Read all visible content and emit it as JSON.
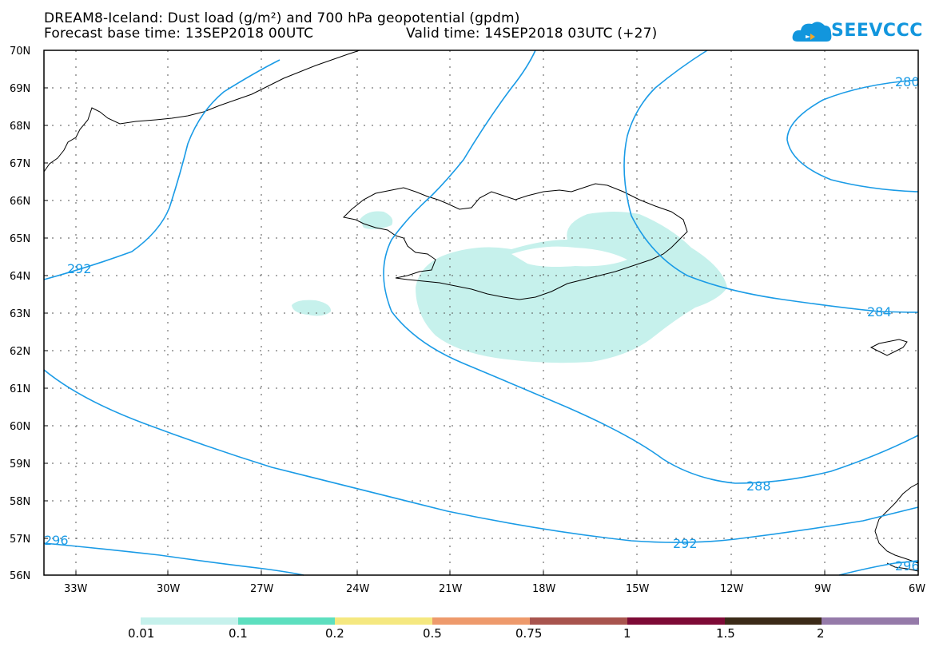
{
  "title": {
    "line1": "DREAM8-Iceland: Dust load (g/m²) and 700 hPa geopotential (gpdm)",
    "base": "Forecast base time: 13SEP2018 00UTC",
    "valid": "Valid time: 14SEP2018 03UTC (+27)"
  },
  "logo": {
    "text": "SEEVCCC",
    "icon": "cloud-icon"
  },
  "axes": {
    "lat_labels": [
      "70N",
      "69N",
      "68N",
      "67N",
      "66N",
      "65N",
      "64N",
      "63N",
      "62N",
      "61N",
      "60N",
      "59N",
      "58N",
      "57N",
      "56N"
    ],
    "lon_labels": [
      "33W",
      "30W",
      "27W",
      "24W",
      "21W",
      "18W",
      "15W",
      "12W",
      "9W",
      "6W"
    ]
  },
  "contours": {
    "labels": [
      "280",
      "284",
      "288",
      "292",
      "292",
      "296",
      "296"
    ]
  },
  "legend": {
    "labels": [
      "0.01",
      "0.1",
      "0.2",
      "0.5",
      "0.75",
      "1",
      "1.5",
      "2"
    ],
    "colors": [
      "#c6f1ec",
      "#5ddfbf",
      "#f5e880",
      "#ee9a6c",
      "#a8544e",
      "#7d0a36",
      "#3b2a17",
      "#957aa9"
    ]
  },
  "colors": {
    "contour": "#1a9be6",
    "dust_low": "#c6f1ec",
    "coast": "#000000"
  }
}
